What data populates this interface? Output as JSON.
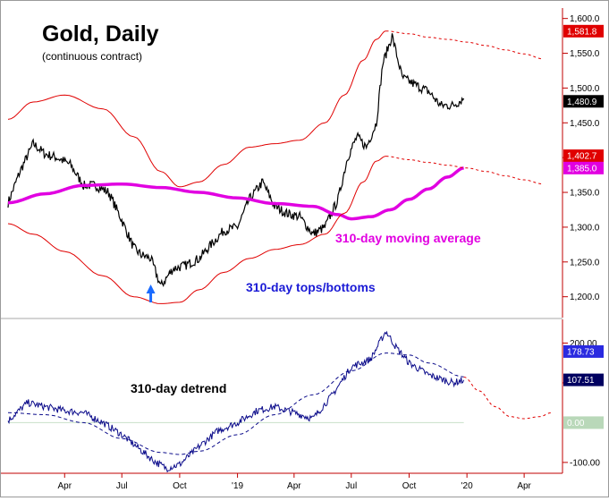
{
  "chart_data": [
    {
      "type": "line",
      "title": "Gold, Daily",
      "subtitle": "(continuous contract)",
      "x_ticks": [
        "Apr",
        "Jul",
        "Oct",
        "'19",
        "Apr",
        "Jul",
        "Oct",
        "'20",
        "Apr"
      ],
      "x_tick_dates": [
        "2018-04-01",
        "2018-07-01",
        "2018-10-01",
        "2019-01-01",
        "2019-04-01",
        "2019-07-01",
        "2019-10-01",
        "2020-01-01",
        "2020-04-01"
      ],
      "x_range": [
        "2018-01-01",
        "2020-06-01"
      ],
      "ylim": [
        1170,
        1615
      ],
      "y_ticks": [
        "1,600.0",
        "1,550.0",
        "1,500.0",
        "1,450.0",
        "1,400.0",
        "1,350.0",
        "1,300.0",
        "1,250.0",
        "1,200.0"
      ],
      "y_tick_values": [
        1600,
        1550,
        1500,
        1450,
        1400,
        1350,
        1300,
        1250,
        1200
      ],
      "grid": false,
      "series": [
        {
          "name": "",
          "color": "#000000",
          "style": "price",
          "x": [
            "2018-01-01",
            "2018-01-20",
            "2018-02-10",
            "2018-03-01",
            "2018-03-20",
            "2018-04-10",
            "2018-05-01",
            "2018-05-20",
            "2018-06-10",
            "2018-07-01",
            "2018-07-20",
            "2018-08-01",
            "2018-08-16",
            "2018-09-01",
            "2018-09-20",
            "2018-10-10",
            "2018-11-01",
            "2018-11-20",
            "2018-12-10",
            "2019-01-01",
            "2019-01-20",
            "2019-02-10",
            "2019-03-01",
            "2019-03-20",
            "2019-04-10",
            "2019-05-01",
            "2019-05-20",
            "2019-06-10",
            "2019-06-25",
            "2019-07-10",
            "2019-07-25",
            "2019-08-10",
            "2019-08-20",
            "2019-09-04",
            "2019-09-20",
            "2019-10-10",
            "2019-11-01",
            "2019-11-20",
            "2019-12-10",
            "2019-12-27"
          ],
          "values": [
            1335,
            1380,
            1420,
            1405,
            1400,
            1390,
            1360,
            1360,
            1350,
            1310,
            1270,
            1260,
            1255,
            1215,
            1240,
            1245,
            1255,
            1275,
            1295,
            1300,
            1340,
            1365,
            1330,
            1320,
            1315,
            1290,
            1300,
            1340,
            1400,
            1430,
            1415,
            1450,
            1535,
            1575,
            1515,
            1505,
            1495,
            1475,
            1475,
            1485
          ]
        },
        {
          "name": "310-day moving average",
          "color": "#e100e1",
          "style": "ma",
          "x": [
            "2018-01-01",
            "2018-03-01",
            "2018-05-01",
            "2018-07-01",
            "2018-09-01",
            "2018-11-01",
            "2019-01-01",
            "2019-03-01",
            "2019-05-01",
            "2019-06-10",
            "2019-07-01",
            "2019-08-01",
            "2019-09-01",
            "2019-10-01",
            "2019-11-01",
            "2019-12-01",
            "2019-12-27"
          ],
          "values": [
            1335,
            1348,
            1360,
            1362,
            1357,
            1350,
            1342,
            1334,
            1330,
            1318,
            1312,
            1315,
            1325,
            1340,
            1355,
            1372,
            1385
          ]
        },
        {
          "name": "",
          "color": "#e00000",
          "style": "band",
          "x": [
            "2018-01-01",
            "2018-02-10",
            "2018-04-01",
            "2018-06-01",
            "2018-07-20",
            "2018-09-01",
            "2018-10-01",
            "2018-11-01",
            "2018-12-10",
            "2019-01-20",
            "2019-03-01",
            "2019-04-10",
            "2019-05-20",
            "2019-06-20",
            "2019-07-20",
            "2019-08-10",
            "2019-08-25"
          ],
          "values": [
            1455,
            1480,
            1490,
            1470,
            1430,
            1380,
            1358,
            1365,
            1390,
            1415,
            1420,
            1425,
            1450,
            1490,
            1540,
            1570,
            1582
          ]
        },
        {
          "name": "",
          "color": "#e00000",
          "style": "band",
          "x": [
            "2018-01-01",
            "2018-02-10",
            "2018-04-01",
            "2018-06-01",
            "2018-07-20",
            "2018-09-01",
            "2018-10-01",
            "2018-11-01",
            "2018-12-10",
            "2019-01-20",
            "2019-03-01",
            "2019-04-10",
            "2019-05-20",
            "2019-06-20",
            "2019-07-20",
            "2019-08-10",
            "2019-08-25"
          ],
          "values": [
            1305,
            1290,
            1265,
            1230,
            1200,
            1190,
            1192,
            1210,
            1235,
            1255,
            1268,
            1275,
            1290,
            1320,
            1365,
            1395,
            1402
          ]
        },
        {
          "name": "",
          "color": "#e00000",
          "style": "projection",
          "x": [
            "2019-08-25",
            "2019-10-01",
            "2019-11-01",
            "2019-12-01",
            "2020-01-01",
            "2020-02-01",
            "2020-03-01",
            "2020-04-01",
            "2020-05-01"
          ],
          "values": [
            1582,
            1578,
            1573,
            1570,
            1566,
            1561,
            1555,
            1549,
            1542
          ]
        },
        {
          "name": "",
          "color": "#e00000",
          "style": "projection",
          "x": [
            "2019-08-25",
            "2019-10-01",
            "2019-11-01",
            "2019-12-01",
            "2020-01-01",
            "2020-02-01",
            "2020-03-01",
            "2020-04-01",
            "2020-05-01"
          ],
          "values": [
            1402,
            1397,
            1393,
            1389,
            1385,
            1380,
            1374,
            1368,
            1362
          ]
        }
      ],
      "annotations": [
        "310-day moving average",
        "310-day tops/bottoms"
      ],
      "badges": [
        {
          "text": "1,581.8",
          "bg": "#e00000",
          "fg": "#ffffff",
          "value": 1581.8
        },
        {
          "text": "1,480.9",
          "bg": "#000000",
          "fg": "#ffffff",
          "value": 1480.9
        },
        {
          "text": "1,402.7",
          "bg": "#e00000",
          "fg": "#ffffff",
          "value": 1402.7
        },
        {
          "text": "1,385.0",
          "bg": "#e100e1",
          "fg": "#ffffff",
          "value": 1385.0
        }
      ],
      "marker": {
        "label": "bottom-arrow",
        "date": "2018-08-16",
        "color": "#1a6bff"
      }
    },
    {
      "type": "line",
      "title": "",
      "x_range": [
        "2018-01-01",
        "2020-06-01"
      ],
      "ylim": [
        -125,
        255
      ],
      "y_ticks": [
        "200.00",
        "100.00",
        "-100.00"
      ],
      "y_tick_values": [
        200,
        100,
        -100
      ],
      "grid": false,
      "zero_line": {
        "value": 0,
        "color": "#c8e0c8"
      },
      "series": [
        {
          "name": "",
          "color": "#0a0a8a",
          "style": "detrend",
          "x": [
            "2018-01-01",
            "2018-02-01",
            "2018-03-01",
            "2018-04-01",
            "2018-05-01",
            "2018-06-01",
            "2018-07-01",
            "2018-08-01",
            "2018-08-20",
            "2018-09-10",
            "2018-10-01",
            "2018-11-01",
            "2018-12-01",
            "2019-01-01",
            "2019-02-01",
            "2019-03-01",
            "2019-04-01",
            "2019-05-01",
            "2019-06-01",
            "2019-07-01",
            "2019-08-01",
            "2019-08-25",
            "2019-09-10",
            "2019-10-01",
            "2019-11-01",
            "2019-11-20",
            "2019-12-10",
            "2019-12-27"
          ],
          "values": [
            5,
            50,
            40,
            30,
            25,
            0,
            -30,
            -70,
            -95,
            -115,
            -105,
            -60,
            -20,
            0,
            30,
            40,
            25,
            10,
            70,
            140,
            160,
            230,
            190,
            150,
            120,
            110,
            100,
            107
          ]
        },
        {
          "name": "",
          "color": "#0a0a8a",
          "style": "cycle",
          "x": [
            "2018-01-01",
            "2018-03-01",
            "2018-05-01",
            "2018-07-01",
            "2018-09-01",
            "2018-10-01",
            "2018-11-01",
            "2019-01-01",
            "2019-03-01",
            "2019-05-01",
            "2019-07-01",
            "2019-08-25",
            "2019-10-01",
            "2019-11-01",
            "2019-12-27"
          ],
          "values": [
            25,
            20,
            0,
            -40,
            -75,
            -80,
            -72,
            -30,
            20,
            70,
            130,
            175,
            170,
            150,
            115
          ]
        },
        {
          "name": "",
          "color": "#e00000",
          "style": "projection",
          "x": [
            "2019-12-27",
            "2020-01-20",
            "2020-02-15",
            "2020-03-10",
            "2020-04-01",
            "2020-04-25",
            "2020-05-15"
          ],
          "values": [
            115,
            80,
            40,
            15,
            10,
            15,
            25
          ]
        }
      ],
      "annotations": [
        "310-day detrend"
      ],
      "badges": [
        {
          "text": "178.73",
          "bg": "#2a2ae0",
          "fg": "#ffffff",
          "value": 178.73
        },
        {
          "text": "107.51",
          "bg": "#000060",
          "fg": "#ffffff",
          "value": 107.51
        },
        {
          "text": "0.00",
          "bg": "#b9d8b9",
          "fg": "#ffffff",
          "value": 0
        }
      ]
    }
  ]
}
